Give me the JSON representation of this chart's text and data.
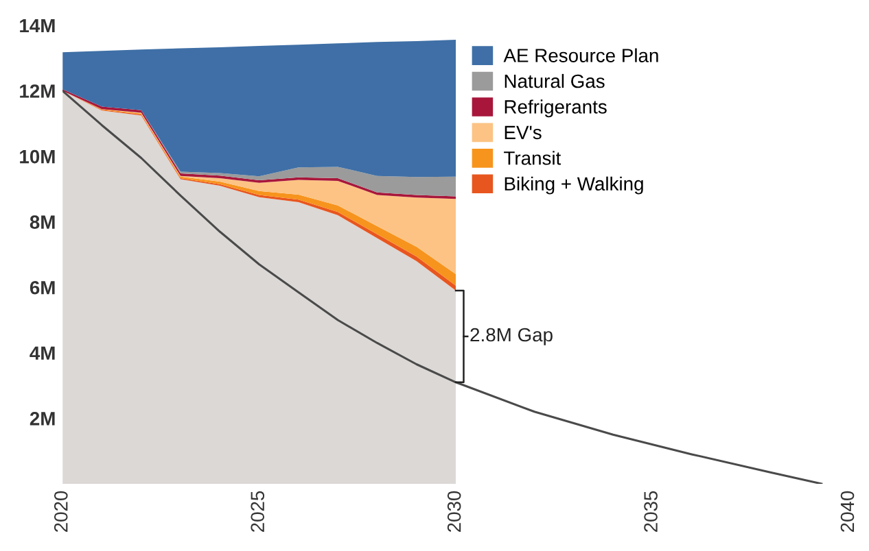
{
  "chart_data": {
    "type": "area",
    "stacked": true,
    "x": [
      2020,
      2021,
      2022,
      2023,
      2024,
      2025,
      2026,
      2027,
      2028,
      2029,
      2030
    ],
    "series": [
      {
        "color": "#dcd8d6",
        "values": [
          12.0,
          11.4,
          11.25,
          9.3,
          9.1,
          8.75,
          8.6,
          8.2,
          7.5,
          6.8,
          5.9
        ]
      },
      {
        "name": "Biking + Walking",
        "color": "#e8561f",
        "values": [
          0,
          0.02,
          0.03,
          0.03,
          0.05,
          0.07,
          0.08,
          0.1,
          0.12,
          0.14,
          0.15
        ]
      },
      {
        "name": "Transit",
        "color": "#f7941d",
        "values": [
          0,
          0.02,
          0.03,
          0.05,
          0.08,
          0.12,
          0.15,
          0.2,
          0.25,
          0.3,
          0.35
        ]
      },
      {
        "name": "EV's",
        "color": "#fcc384",
        "values": [
          0,
          0,
          0.02,
          0.02,
          0.1,
          0.25,
          0.45,
          0.75,
          0.95,
          1.5,
          2.3
        ]
      },
      {
        "name": "Refrigerants",
        "color": "#a8173b",
        "values": [
          0.05,
          0.08,
          0.08,
          0.08,
          0.08,
          0.08,
          0.08,
          0.08,
          0.08,
          0.08,
          0.08
        ]
      },
      {
        "name": "Natural Gas",
        "color": "#9b9b9b",
        "values": [
          0,
          0,
          0,
          0.05,
          0.08,
          0.12,
          0.3,
          0.35,
          0.5,
          0.55,
          0.6
        ]
      },
      {
        "name": "AE Resource Plan",
        "color": "#3f6fa6",
        "values": [
          1.13,
          1.7,
          1.85,
          3.77,
          3.84,
          3.98,
          3.75,
          3.77,
          4.09,
          4.15,
          4.18
        ]
      },
      {
        "type": "line",
        "color": "#4a4a4a",
        "x": [
          2020,
          2021,
          2022,
          2023,
          2024,
          2025,
          2026,
          2027,
          2028,
          2029,
          2030,
          2032,
          2034,
          2036,
          2038,
          2039.3
        ],
        "values": [
          12.0,
          10.95,
          9.95,
          8.8,
          7.7,
          6.7,
          5.85,
          5.0,
          4.3,
          3.65,
          3.1,
          2.2,
          1.5,
          0.9,
          0.35,
          0
        ]
      }
    ],
    "xlim": [
      2020,
      2040
    ],
    "xticks": [
      2020,
      2025,
      2030,
      2035,
      2040
    ],
    "ylim": [
      0,
      14
    ],
    "yticks": [
      {
        "value": 2,
        "label": "2M"
      },
      {
        "value": 4,
        "label": "4M"
      },
      {
        "value": 6,
        "label": "6M"
      },
      {
        "value": 8,
        "label": "8M"
      },
      {
        "value": 10,
        "label": "10M"
      },
      {
        "value": 12,
        "label": "12M"
      },
      {
        "value": 14,
        "label": "14M"
      }
    ],
    "annotations": [
      {
        "text": "2.8M Gap",
        "x": 2030,
        "y": 4.5
      }
    ],
    "legend": "top right",
    "grid": false
  }
}
